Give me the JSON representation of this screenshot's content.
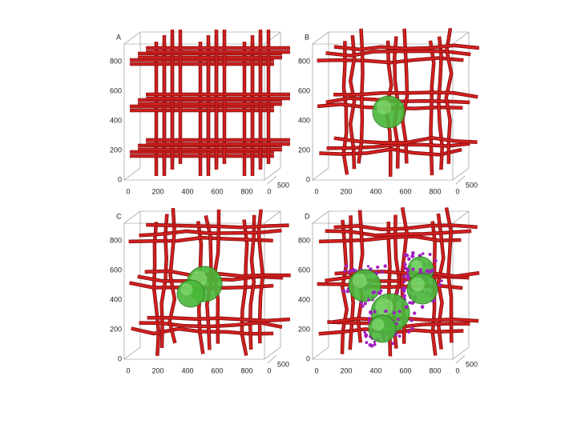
{
  "panels": [
    {
      "label": "A",
      "yticks": [
        800,
        600,
        400,
        200,
        0
      ],
      "xticks": [
        0,
        200,
        400,
        600,
        800
      ],
      "zticks": [
        0,
        500
      ]
    },
    {
      "label": "B",
      "yticks": [
        800,
        600,
        400,
        200,
        0
      ],
      "xticks": [
        0,
        200,
        400,
        600,
        800
      ],
      "zticks": [
        0,
        500
      ]
    },
    {
      "label": "C",
      "yticks": [
        800,
        600,
        400,
        200,
        0
      ],
      "xticks": [
        0,
        200,
        400,
        600,
        800
      ],
      "zticks": [
        0,
        500
      ]
    },
    {
      "label": "D",
      "yticks": [
        800,
        600,
        400,
        200,
        0
      ],
      "xticks": [
        0,
        200,
        400,
        600,
        800
      ],
      "zticks": [
        0,
        500
      ]
    }
  ]
}
